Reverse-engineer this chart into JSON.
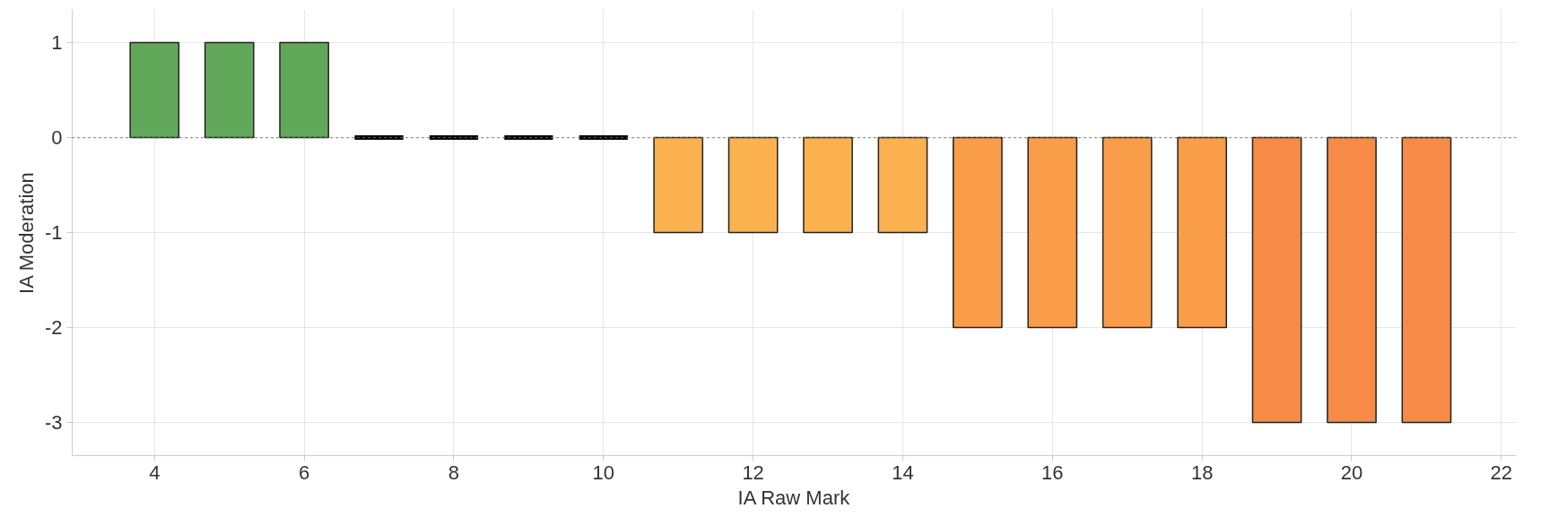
{
  "chart_data": {
    "type": "bar",
    "xlabel": "IA Raw Mark",
    "ylabel": "IA Moderation",
    "x": [
      4,
      5,
      6,
      7,
      8,
      9,
      10,
      11,
      12,
      13,
      14,
      15,
      16,
      17,
      18,
      19,
      20,
      21
    ],
    "values": [
      1,
      1,
      1,
      0,
      0,
      0,
      0,
      -1,
      -1,
      -1,
      -1,
      -2,
      -2,
      -2,
      -2,
      -3,
      -3,
      -3
    ],
    "colors": [
      "#62a85a",
      "#62a85a",
      "#62a85a",
      "#000000",
      "#000000",
      "#000000",
      "#000000",
      "#fbb150",
      "#fbb150",
      "#fbb150",
      "#fbb150",
      "#f99d49",
      "#f99d49",
      "#f99d49",
      "#f99d49",
      "#f58b46",
      "#f58b46",
      "#f58b46"
    ],
    "xlim": [
      2.9,
      22.2
    ],
    "xticks": [
      4,
      6,
      8,
      10,
      12,
      14,
      16,
      18,
      20,
      22
    ],
    "ylim": [
      -3.35,
      1.35
    ],
    "yticks": [
      -3,
      -2,
      -1,
      0,
      1
    ],
    "ref_lines": [
      {
        "axis": "y",
        "value": 0,
        "color": "#777777",
        "line_style": "dotted"
      }
    ],
    "grid": true
  }
}
